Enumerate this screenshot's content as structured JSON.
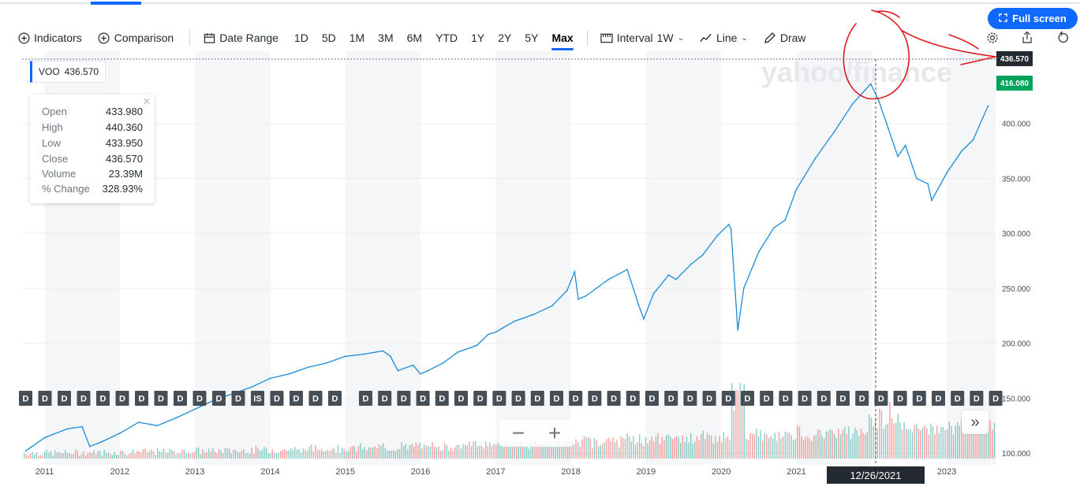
{
  "toolbar": {
    "indicators_label": "Indicators",
    "comparison_label": "Comparison",
    "date_range_label": "Date Range",
    "ranges": [
      "1D",
      "5D",
      "1M",
      "3M",
      "6M",
      "YTD",
      "1Y",
      "2Y",
      "5Y",
      "Max"
    ],
    "active_range": "Max",
    "interval_label": "Interval",
    "interval_value": "1W",
    "chart_type_label": "Line",
    "draw_label": "Draw",
    "fullscreen_label": "Full screen"
  },
  "legend": {
    "symbol": "VOO",
    "value": "436.570",
    "accent_color": "#0f69ff"
  },
  "ohlc": {
    "rows": [
      {
        "label": "Open",
        "value": "433.980"
      },
      {
        "label": "High",
        "value": "440.360"
      },
      {
        "label": "Low",
        "value": "433.950"
      },
      {
        "label": "Close",
        "value": "436.570"
      },
      {
        "label": "Volume",
        "value": "23.39M"
      },
      {
        "label": "% Change",
        "value": "328.93%"
      }
    ],
    "close_icon": "close-icon"
  },
  "crosshair": {
    "date_label": "12/26/2021",
    "price_label": "436.570"
  },
  "current_price": {
    "label": "416.080",
    "color": "#00a35c"
  },
  "watermark": "yahoo/finance",
  "dividend_marker_label": "D",
  "split_marker_label": "IS",
  "zoom": {
    "minus": "−",
    "plus": "+"
  },
  "next_label": "»",
  "chart_data": {
    "type": "line",
    "title": "",
    "series": [
      {
        "name": "VOO",
        "color": "#1a8cd8",
        "x": [
          2010.75,
          2011.0,
          2011.3,
          2011.5,
          2011.6,
          2011.75,
          2012.0,
          2012.25,
          2012.5,
          2012.75,
          2013.0,
          2013.25,
          2013.5,
          2013.75,
          2014.0,
          2014.25,
          2014.5,
          2014.75,
          2015.0,
          2015.25,
          2015.5,
          2015.6,
          2015.7,
          2015.9,
          2016.0,
          2016.1,
          2016.3,
          2016.5,
          2016.75,
          2016.9,
          2017.0,
          2017.25,
          2017.5,
          2017.75,
          2017.95,
          2018.05,
          2018.1,
          2018.2,
          2018.5,
          2018.75,
          2018.9,
          2018.97,
          2019.1,
          2019.3,
          2019.4,
          2019.6,
          2019.75,
          2019.95,
          2020.1,
          2020.13,
          2020.22,
          2020.3,
          2020.5,
          2020.7,
          2020.85,
          2021.0,
          2021.25,
          2021.5,
          2021.75,
          2021.99,
          2022.1,
          2022.2,
          2022.35,
          2022.45,
          2022.6,
          2022.75,
          2022.8,
          2023.0,
          2023.2,
          2023.35,
          2023.55
        ],
        "values": [
          102,
          114,
          122,
          124,
          106,
          110,
          118,
          128,
          125,
          132,
          140,
          148,
          154,
          160,
          168,
          172,
          178,
          182,
          188,
          190,
          193,
          188,
          175,
          180,
          172,
          175,
          182,
          192,
          198,
          208,
          210,
          220,
          226,
          234,
          248,
          265,
          240,
          243,
          258,
          267,
          235,
          222,
          245,
          262,
          258,
          272,
          280,
          298,
          308,
          304,
          212,
          250,
          283,
          305,
          312,
          340,
          368,
          392,
          418,
          436,
          420,
          400,
          370,
          380,
          350,
          345,
          330,
          355,
          375,
          385,
          416
        ]
      }
    ],
    "volume_note": "red/green volume bars along bottom",
    "xlim": [
      2010.7,
      2023.65
    ],
    "ylim": [
      95,
      455
    ],
    "x_ticks": [
      "2011",
      "2012",
      "2013",
      "2014",
      "2015",
      "2016",
      "2017",
      "2018",
      "2019",
      "2020",
      "2021",
      "2023"
    ],
    "y_ticks": [
      "100.000",
      "150.000",
      "200.000",
      "250.000",
      "300.000",
      "350.000",
      "400.000"
    ],
    "grid": true
  }
}
